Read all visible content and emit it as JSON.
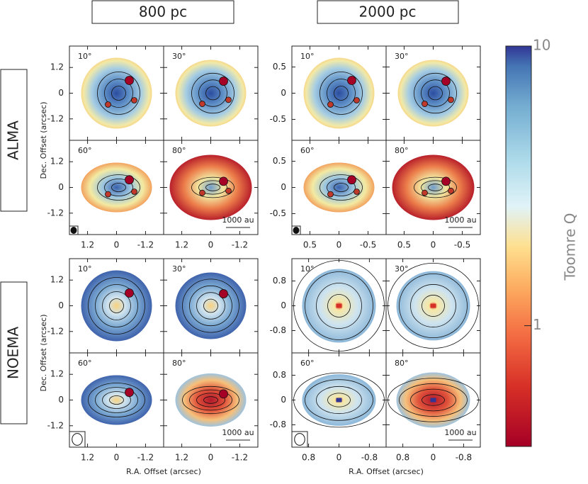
{
  "columns": [
    "800 pc",
    "2000 pc"
  ],
  "rows": [
    "ALMA",
    "NOEMA"
  ],
  "y_axis_label": "Dec. Offset (arcsec)",
  "x_axis_label": "R.A. Offset (arcsec)",
  "groups": [
    {
      "panels": [
        "10°",
        "30°",
        "60°",
        "80°"
      ],
      "scale_bar": "1000 au",
      "xlim": [
        1.95,
        -1.95
      ],
      "ylim": [
        -2.2,
        2.2
      ],
      "xticks": [
        1.2,
        0,
        -1.2
      ],
      "yticks": [
        1.2,
        0,
        -1.2
      ]
    },
    {
      "panels": [
        "10°",
        "30°",
        "60°",
        "80°"
      ],
      "scale_bar": "1000 au",
      "xlim": [
        0.81,
        -0.81
      ],
      "ylim": [
        -0.9,
        0.9
      ],
      "xticks": [
        0.5,
        0,
        -0.5
      ],
      "yticks": [
        0.5,
        0,
        -0.5
      ]
    },
    {
      "panels": [
        "10°",
        "30°",
        "60°",
        "80°"
      ],
      "scale_bar": "1000 au",
      "xlim": [
        1.95,
        -1.95
      ],
      "ylim": [
        -2.2,
        2.2
      ],
      "xticks": [
        1.2,
        0,
        -1.2
      ],
      "yticks": [
        1.2,
        0,
        -1.2
      ]
    },
    {
      "panels": [
        "10°",
        "30°",
        "60°",
        "80°"
      ],
      "scale_bar": "1000 au",
      "xlim": [
        1.24,
        -1.24
      ],
      "ylim": [
        -1.52,
        1.52
      ],
      "xticks": [
        0.8,
        0,
        -0.8
      ],
      "yticks": [
        0.8,
        0,
        -0.8
      ]
    }
  ],
  "colorbar": {
    "label": "Toomre Q",
    "clim": [
      0.37,
      10
    ],
    "ticks": [
      1,
      10
    ],
    "log": true
  }
}
